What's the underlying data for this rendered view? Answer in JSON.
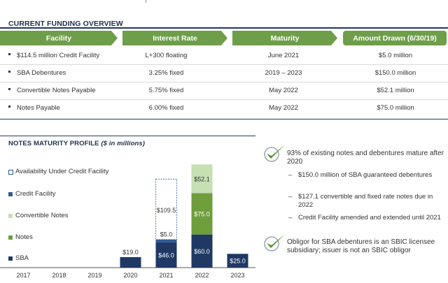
{
  "funding": {
    "title": "CURRENT FUNDING OVERVIEW",
    "headers": [
      "Facility",
      "Interest Rate",
      "Maturity",
      "Amount Drawn (6/30/19)"
    ],
    "rows": [
      {
        "facility": "$114.5 million Credit Facility",
        "rate": "L+300 floating",
        "maturity": "June 2021",
        "amount": "$5.0 million"
      },
      {
        "facility": "SBA Debentures",
        "rate": "3.25% fixed",
        "maturity": "2019 – 2023",
        "amount": "$150.0 million"
      },
      {
        "facility": "Convertible Notes Payable",
        "rate": "5.75% fixed",
        "maturity": "May 2022",
        "amount": "$52.1 million"
      },
      {
        "facility": "Notes Payable",
        "rate": "6.00% fixed",
        "maturity": "May 2022",
        "amount": "$75.0 million"
      }
    ]
  },
  "maturity": {
    "title": "NOTES MATURITY PROFILE",
    "title_suffix": " ($ in millions)"
  },
  "legend": [
    {
      "label": "Availability Under Credit Facility",
      "color": "#ffffff",
      "border": "#2e5a99"
    },
    {
      "label": "Credit Facility",
      "color": "#2e5a99"
    },
    {
      "label": "Convertible Notes",
      "color": "#c6dfb3"
    },
    {
      "label": "Notes",
      "color": "#6f9e3c"
    },
    {
      "label": "SBA",
      "color": "#1f3864"
    }
  ],
  "colors": {
    "navy": "#1f3864",
    "green": "#6f9e3c",
    "light_green": "#c6dfb3",
    "blue": "#2e5a99",
    "header_green": "#6f9e4b",
    "check_green": "#5a8f2f"
  },
  "chart_data": {
    "type": "bar",
    "stacked": true,
    "categories": [
      "2017",
      "2018",
      "2019",
      "2020",
      "2021",
      "2022",
      "2023"
    ],
    "series": [
      {
        "name": "SBA",
        "values": [
          0,
          0,
          0,
          19.0,
          46.0,
          60.0,
          25.0
        ],
        "color": "#1f3864"
      },
      {
        "name": "Credit Facility",
        "values": [
          0,
          0,
          0,
          0,
          5.0,
          0,
          0
        ],
        "color": "#2e5a99"
      },
      {
        "name": "Notes",
        "values": [
          0,
          0,
          0,
          0,
          0,
          75.0,
          0
        ],
        "color": "#6f9e3c"
      },
      {
        "name": "Convertible Notes",
        "values": [
          0,
          0,
          0,
          0,
          0,
          52.1,
          0
        ],
        "color": "#c6dfb3"
      },
      {
        "name": "Availability Under Credit Facility",
        "values": [
          0,
          0,
          0,
          0,
          109.5,
          0,
          0
        ],
        "color": "#ffffff"
      }
    ],
    "labels": [
      {
        "category": "2020",
        "series": "SBA",
        "text": "$19.0",
        "position": "above"
      },
      {
        "category": "2021",
        "series": "SBA",
        "text": "$46.0",
        "position": "inside"
      },
      {
        "category": "2021",
        "series": "Credit Facility",
        "text": "$5.0",
        "position": "above"
      },
      {
        "category": "2021",
        "series": "Availability Under Credit Facility",
        "text": "$109.5",
        "position": "inside"
      },
      {
        "category": "2022",
        "series": "SBA",
        "text": "$60.0",
        "position": "inside"
      },
      {
        "category": "2022",
        "series": "Notes",
        "text": "$75.0",
        "position": "inside"
      },
      {
        "category": "2022",
        "series": "Convertible Notes",
        "text": "$52.1",
        "position": "inside"
      },
      {
        "category": "2023",
        "series": "SBA",
        "text": "$25.0",
        "position": "inside"
      }
    ],
    "ylim": [
      0,
      190
    ],
    "grid": false,
    "legend": "left"
  },
  "notes": {
    "main1": "93% of existing notes and debentures mature after 2020",
    "subs": [
      "$150.0 million of SBA guaranteed debentures",
      "$127.1 convertible and fixed rate notes due in 2022",
      "Credit Facility amended and extended until 2021"
    ],
    "main2": "Obligor for SBA debentures is an SBIC licensee subsidiary; issuer is not an SBIC obligor",
    "dash": "–"
  }
}
